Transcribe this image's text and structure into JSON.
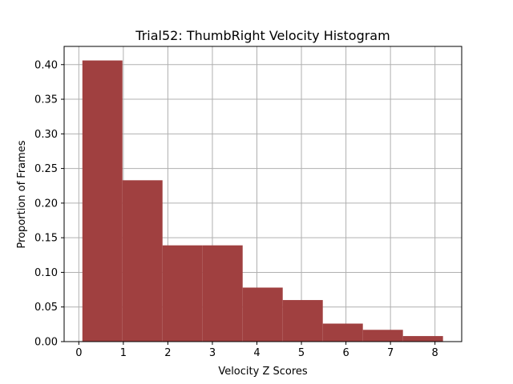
{
  "chart_data": {
    "type": "bar",
    "title": "Trial52: ThumbRight Velocity Histogram",
    "xlabel": "Velocity Z Scores",
    "ylabel": "Proportion of Frames",
    "bins": [
      {
        "x0": 0.08,
        "x1": 0.98,
        "value": 0.406
      },
      {
        "x0": 0.98,
        "x1": 1.88,
        "value": 0.233
      },
      {
        "x0": 1.88,
        "x1": 2.78,
        "value": 0.139
      },
      {
        "x0": 2.78,
        "x1": 3.68,
        "value": 0.139
      },
      {
        "x0": 3.68,
        "x1": 4.58,
        "value": 0.078
      },
      {
        "x0": 4.58,
        "x1": 5.48,
        "value": 0.06
      },
      {
        "x0": 5.48,
        "x1": 6.38,
        "value": 0.026
      },
      {
        "x0": 6.38,
        "x1": 7.28,
        "value": 0.017
      },
      {
        "x0": 7.28,
        "x1": 8.18,
        "value": 0.008
      }
    ],
    "xlim": [
      -0.33,
      8.6
    ],
    "ylim": [
      0,
      0.4263
    ],
    "xticks": [
      "0",
      "1",
      "2",
      "3",
      "4",
      "5",
      "6",
      "7",
      "8"
    ],
    "yticks": [
      "0.00",
      "0.05",
      "0.10",
      "0.15",
      "0.20",
      "0.25",
      "0.30",
      "0.35",
      "0.40"
    ],
    "grid": true,
    "bar_color": "#a04040",
    "grid_color": "#b0b0b0"
  }
}
